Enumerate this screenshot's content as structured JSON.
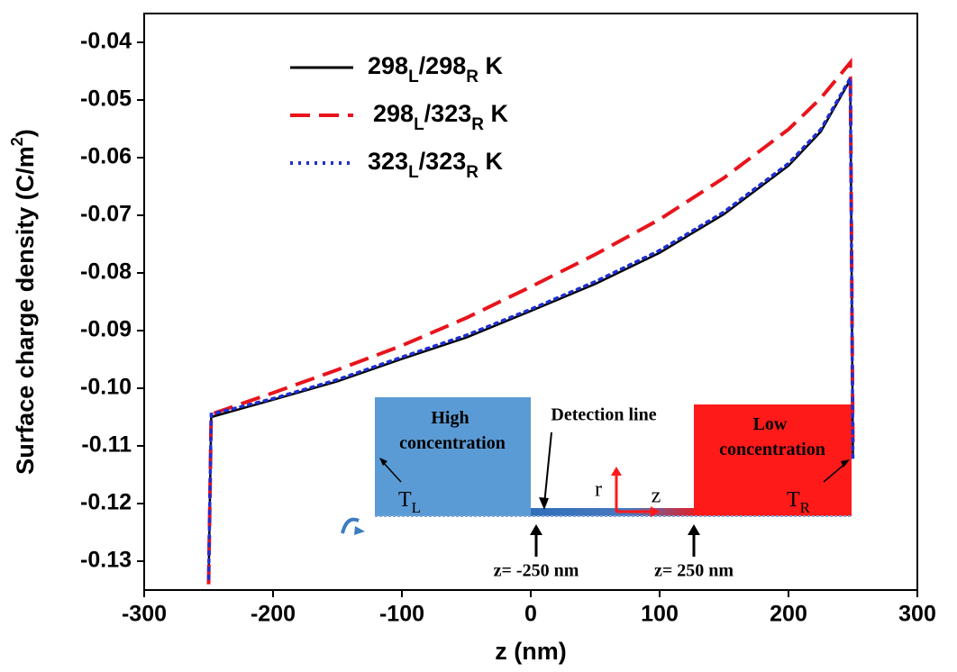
{
  "chart_data": {
    "type": "line",
    "x_label": "z (nm)",
    "y_label": "Surface charge density (C/m2)",
    "x": [
      -250,
      -248,
      -200,
      -150,
      -100,
      -50,
      0,
      50,
      100,
      150,
      200,
      225,
      248,
      250
    ],
    "series": [
      {
        "name": "298L/298R K",
        "color": "#000000",
        "dash": "solid",
        "values": [
          -0.1335,
          -0.105,
          -0.102,
          -0.0988,
          -0.0949,
          -0.0912,
          -0.0866,
          -0.0819,
          -0.0765,
          -0.0698,
          -0.0614,
          -0.0555,
          -0.0465,
          -0.112
        ]
      },
      {
        "name": "298L/323R K",
        "color": "#e8141c",
        "dash": "dashed",
        "values": [
          -0.134,
          -0.1045,
          -0.1008,
          -0.0968,
          -0.0926,
          -0.0878,
          -0.0824,
          -0.0768,
          -0.0707,
          -0.0635,
          -0.0551,
          -0.0497,
          -0.0435,
          -0.111
        ]
      },
      {
        "name": "323L/323R K",
        "color": "#1f2fd0",
        "dash": "dotted",
        "values": [
          -0.133,
          -0.1045,
          -0.1018,
          -0.0985,
          -0.0946,
          -0.0908,
          -0.0863,
          -0.0815,
          -0.0761,
          -0.0694,
          -0.061,
          -0.0551,
          -0.0462,
          -0.112
        ]
      }
    ],
    "xlim": [
      -300,
      300
    ],
    "xticks": [
      -300,
      -200,
      -100,
      0,
      100,
      200,
      300
    ],
    "ylim": [
      -0.135,
      -0.035
    ],
    "yticks": [
      -0.04,
      -0.05,
      -0.06,
      -0.07,
      -0.08,
      -0.09,
      {
        "value": -0.1,
        "label": "-0.10"
      },
      -0.11,
      -0.12,
      -0.13
    ],
    "legend": "top-left",
    "annotations": [
      "High concentration",
      "Low concentration",
      "Detection line",
      "TL",
      "TR",
      "r",
      "z",
      "z= -250 nm",
      "z= 250 nm"
    ]
  }
}
